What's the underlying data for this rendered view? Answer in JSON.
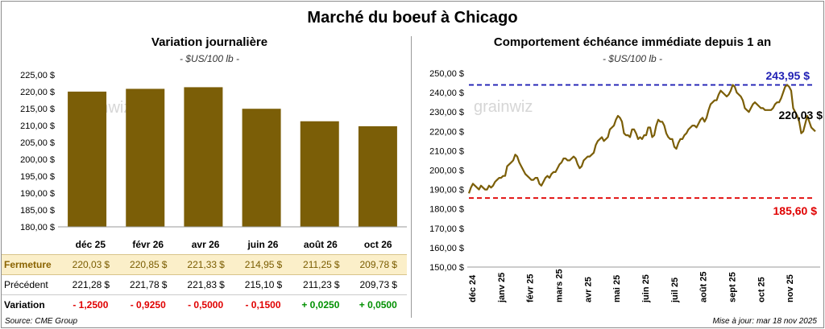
{
  "title": "Marché du boeuf à Chicago",
  "footer": {
    "source": "Source: CME Group",
    "updated": "Mise à jour: mar 18 nov 2025"
  },
  "watermark": "grainwiz",
  "colors": {
    "bar": "#7b5e07",
    "line": "#7b5e07",
    "high": "#1f1fb4",
    "low": "#e00000",
    "pos": "#009000",
    "neg": "#e00000",
    "fermeture_bg": "#fbefc9"
  },
  "chart_data": [
    {
      "type": "bar",
      "title": "Variation  journalière",
      "subtitle": "- $US/100 lb -",
      "categories": [
        "déc 25",
        "févr 26",
        "avr 26",
        "juin 26",
        "août 26",
        "oct 26"
      ],
      "values": [
        220.03,
        220.85,
        221.33,
        214.95,
        211.25,
        209.78
      ],
      "ylim": [
        180,
        225
      ],
      "yticks": [
        "180,00 $",
        "185,00 $",
        "190,00 $",
        "195,00 $",
        "200,00 $",
        "205,00 $",
        "210,00 $",
        "215,00 $",
        "220,00 $",
        "225,00 $"
      ],
      "grid": false
    },
    {
      "type": "line",
      "title": "Comportement  échéance immédiate depuis 1 an",
      "subtitle": "- $US/100 lb -",
      "ylim": [
        150,
        250
      ],
      "yticks": [
        "150,00 $",
        "160,00 $",
        "170,00 $",
        "180,00 $",
        "190,00 $",
        "200,00 $",
        "210,00 $",
        "220,00 $",
        "230,00 $",
        "240,00 $",
        "250,00 $"
      ],
      "xticks": [
        "déc 24",
        "janv 25",
        "févr 25",
        "mars 25",
        "avr 25",
        "mai 25",
        "juin 25",
        "juil 25",
        "août 25",
        "sept 25",
        "oct 25",
        "nov 25"
      ],
      "high": 243.95,
      "high_label": "243,95 $",
      "low": 185.6,
      "low_label": "185,60 $",
      "last_label": "220,03 $",
      "series": [
        {
          "values": [
            188,
            191,
            193,
            192,
            191,
            190,
            192,
            191,
            190,
            190,
            192,
            191,
            192,
            194,
            195,
            196,
            196,
            197,
            197,
            202,
            203,
            204,
            205,
            208,
            207,
            204,
            202,
            200,
            198,
            197,
            196,
            195,
            195,
            196,
            196,
            193,
            192,
            194,
            196,
            197,
            196,
            198,
            199,
            199,
            201,
            203,
            204,
            206,
            206,
            205,
            205,
            206,
            207,
            206,
            203,
            201,
            202,
            205,
            206,
            207,
            207,
            208,
            209,
            213,
            215,
            216,
            217,
            215,
            216,
            217,
            221,
            222,
            223,
            226,
            228,
            227,
            225,
            219,
            218,
            218,
            217,
            221,
            221,
            219,
            216,
            217,
            216,
            218,
            218,
            222,
            222,
            217,
            218,
            223,
            226,
            225,
            225,
            223,
            219,
            217,
            216,
            216,
            212,
            211,
            214,
            216,
            216,
            218,
            219,
            221,
            222,
            223,
            223,
            222,
            224,
            226,
            227,
            225,
            227,
            231,
            234,
            235,
            236,
            236,
            239,
            241,
            240,
            239,
            238,
            239,
            241,
            244,
            243,
            240,
            239,
            238,
            236,
            232,
            231,
            230,
            232,
            234,
            235,
            234,
            233,
            232,
            232,
            231,
            231,
            231,
            231,
            232,
            234,
            235,
            235,
            237,
            240,
            243,
            244,
            243,
            241,
            232,
            230,
            228,
            225,
            219,
            220,
            224,
            228,
            225,
            222,
            221,
            220
          ]
        }
      ]
    }
  ],
  "table": {
    "rows": [
      {
        "label": "Fermeture",
        "cells": [
          [
            "220,03",
            "$"
          ],
          [
            "220,85",
            "$"
          ],
          [
            "221,33",
            "$"
          ],
          [
            "214,95",
            "$"
          ],
          [
            "211,25",
            "$"
          ],
          [
            "209,78",
            "$"
          ]
        ]
      },
      {
        "label": "Précédent",
        "cells": [
          [
            "221,28",
            "$"
          ],
          [
            "221,78",
            "$"
          ],
          [
            "221,83",
            "$"
          ],
          [
            "215,10",
            "$"
          ],
          [
            "211,23",
            "$"
          ],
          [
            "209,73",
            "$"
          ]
        ]
      }
    ],
    "variation": {
      "label": "Variation",
      "values": [
        "- 1,2500",
        "- 0,9250",
        "- 0,5000",
        "- 0,1500",
        "+ 0,0250",
        "+ 0,0500"
      ]
    }
  }
}
